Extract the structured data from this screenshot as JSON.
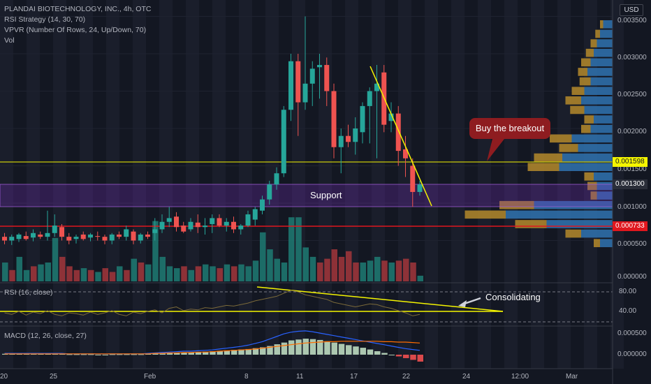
{
  "legend": {
    "title": "PLANDAI BIOTECHNOLOGY, INC., 4h, OTC",
    "rsi_strategy": "RSI Strategy (14, 30, 70)",
    "vpvr": "VPVR (Number Of Rows, 24, Up/Down, 70)",
    "vol": "Vol"
  },
  "currency_button": "USD",
  "price_axis": [
    "0.003500",
    "0.003000",
    "0.002500",
    "0.002000",
    "0.001500",
    "0.001000",
    "0.000500",
    "0.000000"
  ],
  "price_badges": [
    {
      "label": "0.001598",
      "color": "#f5f500",
      "text_color": "#131722"
    },
    {
      "label": "0.001300",
      "color": "#2a2e39",
      "text_color": "#ffffff"
    },
    {
      "label": "0.000733",
      "color": "#e0171e",
      "text_color": "#ffffff"
    }
  ],
  "time_axis": [
    "20",
    "25",
    "Feb",
    "8",
    "11",
    "17",
    "22",
    "24",
    "12:00",
    "Mar"
  ],
  "rsi_pane": {
    "label": "RSI (16, close)",
    "axis": [
      "80.00",
      "40.00"
    ]
  },
  "macd_pane": {
    "label": "MACD (12, 26, close, 27)",
    "axis": [
      "0.000500",
      "0.000000"
    ]
  },
  "annotations": {
    "callout": "Buy the breakout",
    "support": "Support",
    "consolidating": "Consolidating"
  },
  "colors": {
    "up": "#26a69a",
    "down": "#ef5350",
    "accent_red": "#e0171e",
    "yellow": "#f5f500"
  },
  "chart_data": {
    "type": "candlestick",
    "candles": [
      [
        0.00055,
        0.0006,
        0.00045,
        0.0005
      ],
      [
        0.0005,
        0.00058,
        0.00044,
        0.00055
      ],
      [
        0.00052,
        0.0006,
        0.00048,
        0.00058
      ],
      [
        0.00056,
        0.00062,
        0.0005,
        0.00052
      ],
      [
        0.00054,
        0.00065,
        0.00049,
        0.0006
      ],
      [
        0.00058,
        0.00062,
        0.00052,
        0.00055
      ],
      [
        0.00055,
        0.0009,
        0.0005,
        0.0006
      ],
      [
        0.0006,
        0.00085,
        0.00055,
        0.0007
      ],
      [
        0.00068,
        0.00072,
        0.0005,
        0.00055
      ],
      [
        0.00055,
        0.0006,
        0.00045,
        0.0005
      ],
      [
        0.00052,
        0.00058,
        0.00046,
        0.00055
      ],
      [
        0.00058,
        0.00062,
        0.0005,
        0.00052
      ],
      [
        0.00054,
        0.0006,
        0.00049,
        0.00058
      ],
      [
        0.00056,
        0.00062,
        0.0005,
        0.00055
      ],
      [
        0.00055,
        0.00058,
        0.00045,
        0.0005
      ],
      [
        0.0005,
        0.0006,
        0.00045,
        0.00058
      ],
      [
        0.00058,
        0.00062,
        0.00052,
        0.00055
      ],
      [
        0.00055,
        0.0007,
        0.0005,
        0.00065
      ],
      [
        0.00062,
        0.00065,
        0.00045,
        0.0005
      ],
      [
        0.0005,
        0.0006,
        0.00046,
        0.00058
      ],
      [
        0.00058,
        0.00062,
        0.00052,
        0.00055
      ],
      [
        0.0006,
        0.0008,
        0.0005,
        0.00065
      ],
      [
        0.00065,
        0.00085,
        0.0006,
        0.00075
      ],
      [
        0.00075,
        0.00095,
        0.00068,
        0.0008
      ],
      [
        0.00082,
        0.00088,
        0.00062,
        0.00068
      ],
      [
        0.0007,
        0.00075,
        0.0006,
        0.00062
      ],
      [
        0.00065,
        0.0008,
        0.00062,
        0.00075
      ],
      [
        0.00074,
        0.00085,
        0.0006,
        0.00068
      ],
      [
        0.00068,
        0.0008,
        0.00058,
        0.0007
      ],
      [
        0.00072,
        0.00085,
        0.0006,
        0.0008
      ],
      [
        0.0008,
        0.00085,
        0.00068,
        0.0007
      ],
      [
        0.0007,
        0.0008,
        0.00062,
        0.00075
      ],
      [
        0.00075,
        0.00082,
        0.0006,
        0.00065
      ],
      [
        0.00065,
        0.00072,
        0.00058,
        0.0007
      ],
      [
        0.0007,
        0.0009,
        0.00068,
        0.00085
      ],
      [
        0.00078,
        0.00095,
        0.0007,
        0.00092
      ],
      [
        0.0009,
        0.0011,
        0.00085,
        0.00105
      ],
      [
        0.00105,
        0.0013,
        0.00098,
        0.00125
      ],
      [
        0.00125,
        0.00148,
        0.00118,
        0.0014
      ],
      [
        0.0014,
        0.0023,
        0.00135,
        0.00225
      ],
      [
        0.00225,
        0.003,
        0.0021,
        0.0029
      ],
      [
        0.0029,
        0.003,
        0.0019,
        0.00235
      ],
      [
        0.00235,
        0.0035,
        0.00225,
        0.0026
      ],
      [
        0.0026,
        0.0029,
        0.0023,
        0.0028
      ],
      [
        0.00282,
        0.003,
        0.0024,
        0.00285
      ],
      [
        0.00285,
        0.00295,
        0.0023,
        0.0025
      ],
      [
        0.0025,
        0.0026,
        0.0016,
        0.00175
      ],
      [
        0.00175,
        0.002,
        0.0014,
        0.0019
      ],
      [
        0.0019,
        0.00205,
        0.00175,
        0.00182
      ],
      [
        0.00182,
        0.00215,
        0.00165,
        0.002
      ],
      [
        0.00195,
        0.00235,
        0.0018,
        0.0023
      ],
      [
        0.0023,
        0.00255,
        0.0018,
        0.0025
      ],
      [
        0.0025,
        0.00285,
        0.0016,
        0.0026
      ],
      [
        0.00275,
        0.00285,
        0.00195,
        0.00205
      ],
      [
        0.0021,
        0.00235,
        0.00195,
        0.0022
      ],
      [
        0.0022,
        0.0023,
        0.0015,
        0.0017
      ],
      [
        0.00172,
        0.0019,
        0.00135,
        0.0016
      ],
      [
        0.0015,
        0.0016,
        0.00095,
        0.00115
      ],
      [
        0.00115,
        0.0013,
        0.0011,
        0.00125
      ]
    ],
    "volume": [
      [
        1.0,
        1
      ],
      [
        0.6,
        0
      ],
      [
        1.3,
        1
      ],
      [
        0.6,
        1
      ],
      [
        0.8,
        0
      ],
      [
        0.9,
        1
      ],
      [
        1.0,
        1
      ],
      [
        2.3,
        1
      ],
      [
        1.3,
        0
      ],
      [
        0.8,
        0
      ],
      [
        0.6,
        0
      ],
      [
        0.7,
        1
      ],
      [
        0.6,
        0
      ],
      [
        0.5,
        1
      ],
      [
        0.7,
        0
      ],
      [
        0.5,
        0
      ],
      [
        0.8,
        1
      ],
      [
        0.6,
        0
      ],
      [
        1.2,
        1
      ],
      [
        1.0,
        0
      ],
      [
        0.9,
        1
      ],
      [
        3.2,
        1
      ],
      [
        1.3,
        1
      ],
      [
        0.8,
        1
      ],
      [
        0.7,
        1
      ],
      [
        0.8,
        0
      ],
      [
        0.6,
        1
      ],
      [
        0.8,
        0
      ],
      [
        0.9,
        1
      ],
      [
        0.8,
        1
      ],
      [
        0.7,
        0
      ],
      [
        0.9,
        1
      ],
      [
        0.8,
        0
      ],
      [
        0.9,
        1
      ],
      [
        0.8,
        1
      ],
      [
        1.1,
        1
      ],
      [
        2.6,
        1
      ],
      [
        1.7,
        1
      ],
      [
        1.2,
        1
      ],
      [
        1.0,
        1
      ],
      [
        3.4,
        1
      ],
      [
        3.4,
        1
      ],
      [
        1.8,
        1
      ],
      [
        1.3,
        1
      ],
      [
        1.0,
        0
      ],
      [
        1.2,
        0
      ],
      [
        1.7,
        0
      ],
      [
        1.3,
        0
      ],
      [
        1.6,
        0
      ],
      [
        1.0,
        0
      ],
      [
        1.0,
        1
      ],
      [
        1.1,
        1
      ],
      [
        1.3,
        1
      ],
      [
        1.1,
        0
      ],
      [
        1.0,
        1
      ],
      [
        1.1,
        0
      ],
      [
        1.2,
        0
      ],
      [
        1.0,
        0
      ],
      [
        0.3,
        1
      ]
    ],
    "vpvr_rows": [
      [
        0.3,
        0.1
      ],
      [
        0.4,
        0.15
      ],
      [
        0.5,
        0.2
      ],
      [
        0.6,
        0.25
      ],
      [
        0.7,
        0.3
      ],
      [
        0.8,
        0.3
      ],
      [
        0.7,
        0.35
      ],
      [
        0.9,
        0.4
      ],
      [
        1.0,
        0.5
      ],
      [
        0.9,
        0.45
      ],
      [
        0.6,
        0.3
      ],
      [
        0.7,
        0.3
      ],
      [
        1.3,
        0.7
      ],
      [
        1.1,
        0.6
      ],
      [
        1.6,
        0.9
      ],
      [
        1.7,
        1.0
      ],
      [
        0.6,
        0.3
      ],
      [
        0.5,
        0.3
      ],
      [
        0.5,
        0.2
      ],
      [
        2.5,
        1.1
      ],
      [
        3.4,
        1.3
      ],
      [
        2.1,
        1.0
      ],
      [
        1.0,
        0.5
      ],
      [
        0.4,
        0.2
      ]
    ],
    "rsi_series": [
      52,
      50,
      54,
      49,
      53,
      51,
      55,
      50,
      48,
      52,
      51,
      49,
      53,
      50,
      52,
      55,
      50,
      48,
      53,
      51,
      54,
      56,
      52,
      58,
      60,
      55,
      57,
      56,
      59,
      58,
      60,
      62,
      61,
      63,
      65,
      68,
      70,
      72,
      74,
      78,
      82,
      80,
      76,
      74,
      72,
      70,
      66,
      64,
      62,
      60,
      62,
      64,
      63,
      60,
      58,
      55,
      52,
      48,
      50
    ],
    "macd_hist": [
      2e-05,
      2e-05,
      3e-05,
      2e-05,
      2e-05,
      3e-05,
      3e-05,
      2e-05,
      2e-05,
      1e-05,
      1e-05,
      1e-05,
      1e-05,
      0.0,
      0.0,
      1e-05,
      1e-05,
      1e-05,
      1e-05,
      1e-05,
      2e-05,
      3e-05,
      4e-05,
      4e-05,
      5e-05,
      5e-05,
      5e-05,
      6e-05,
      7e-05,
      8e-05,
      9e-05,
      0.0001,
      0.00011,
      0.00012,
      0.00013,
      0.00015,
      0.00017,
      0.0002,
      0.00024,
      0.00028,
      0.00033,
      0.00035,
      0.00037,
      0.00036,
      0.00034,
      0.00031,
      0.00028,
      0.00025,
      0.00022,
      0.00019,
      0.00016,
      0.00012,
      8e-05,
      4e-05,
      0.0,
      -4e-05,
      -8e-05,
      -0.00012,
      -0.00016
    ],
    "macd_line": [
      3e-05,
      3e-05,
      3e-05,
      3e-05,
      3e-05,
      3e-05,
      3e-05,
      3e-05,
      3e-05,
      2e-05,
      2e-05,
      2e-05,
      2e-05,
      2e-05,
      2e-05,
      2e-05,
      2e-05,
      2e-05,
      2e-05,
      2e-05,
      3e-05,
      4e-05,
      5e-05,
      6e-05,
      7e-05,
      8e-05,
      8e-05,
      9e-05,
      0.0001,
      0.00011,
      0.00013,
      0.00015,
      0.00017,
      0.00019,
      0.00022,
      0.00026,
      0.0003,
      0.00036,
      0.00042,
      0.00048,
      0.00052,
      0.00054,
      0.00055,
      0.00053,
      0.0005,
      0.00047,
      0.00044,
      0.00041,
      0.00038,
      0.00035,
      0.00032,
      0.00029,
      0.00026,
      0.00023,
      0.0002,
      0.00017,
      0.00014,
      0.00012,
      0.0001
    ],
    "signal_line": [
      2e-05,
      2e-05,
      2e-05,
      2e-05,
      2e-05,
      2e-05,
      2e-05,
      2e-05,
      2e-05,
      2e-05,
      2e-05,
      2e-05,
      2e-05,
      2e-05,
      2e-05,
      2e-05,
      2e-05,
      2e-05,
      2e-05,
      2e-05,
      2e-05,
      3e-05,
      3e-05,
      4e-05,
      4e-05,
      5e-05,
      5e-05,
      6e-05,
      6e-05,
      7e-05,
      8e-05,
      9e-05,
      0.0001,
      0.00011,
      0.00012,
      0.00013,
      0.00015,
      0.00017,
      0.00019,
      0.00021,
      0.00023,
      0.00025,
      0.00027,
      0.00028,
      0.00029,
      0.0003,
      0.0003,
      0.00031,
      0.00031,
      0.00031,
      0.00031,
      0.00031,
      0.00031,
      0.0003,
      0.0003,
      0.00029,
      0.00029,
      0.00028,
      0.00027
    ]
  }
}
